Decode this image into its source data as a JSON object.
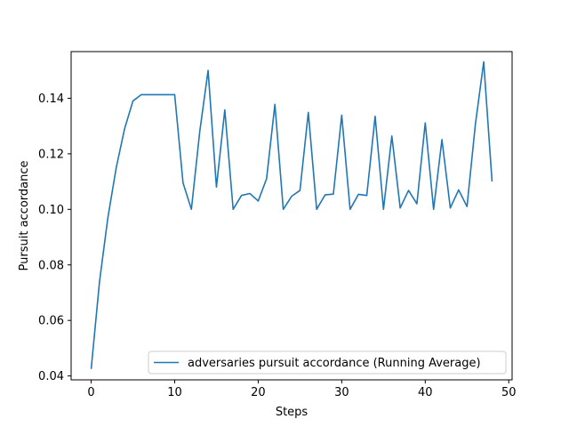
{
  "chart_data": {
    "type": "line",
    "title": "",
    "xlabel": "Steps",
    "ylabel": "Pursuit accordance",
    "xlim": [
      -2.4,
      50.4
    ],
    "ylim": [
      0.0386,
      0.1568
    ],
    "xticks": [
      0,
      10,
      20,
      30,
      40,
      50
    ],
    "xtick_labels": [
      "0",
      "10",
      "20",
      "30",
      "40",
      "50"
    ],
    "yticks": [
      0.04,
      0.06,
      0.08,
      0.1,
      0.12,
      0.14
    ],
    "ytick_labels": [
      "0.04",
      "0.06",
      "0.08",
      "0.10",
      "0.12",
      "0.14"
    ],
    "grid": false,
    "legend_position": "lower-right",
    "series": [
      {
        "name": "adversaries pursuit accordance (Running Average)",
        "color": "#1f77b4",
        "x": [
          0,
          1,
          2,
          3,
          4,
          5,
          6,
          7,
          8,
          9,
          10,
          11,
          12,
          13,
          14,
          15,
          16,
          17,
          18,
          19,
          20,
          21,
          22,
          23,
          24,
          25,
          26,
          27,
          28,
          29,
          30,
          31,
          32,
          33,
          34,
          35,
          36,
          37,
          38,
          39,
          40,
          41,
          42,
          43,
          44,
          45,
          46,
          47,
          48
        ],
        "y": [
          0.0425,
          0.074,
          0.097,
          0.115,
          0.129,
          0.139,
          0.1413,
          0.1413,
          0.1413,
          0.1413,
          0.1413,
          0.1095,
          0.1,
          0.128,
          0.15,
          0.108,
          0.1358,
          0.1,
          0.105,
          0.1057,
          0.103,
          0.111,
          0.1378,
          0.1,
          0.1047,
          0.1068,
          0.1349,
          0.1,
          0.1052,
          0.1055,
          0.1339,
          0.1,
          0.1054,
          0.105,
          0.1335,
          0.1,
          0.1264,
          0.1005,
          0.1068,
          0.102,
          0.1311,
          0.1,
          0.1251,
          0.1005,
          0.107,
          0.101,
          0.1305,
          0.1531,
          0.11
        ]
      }
    ]
  }
}
